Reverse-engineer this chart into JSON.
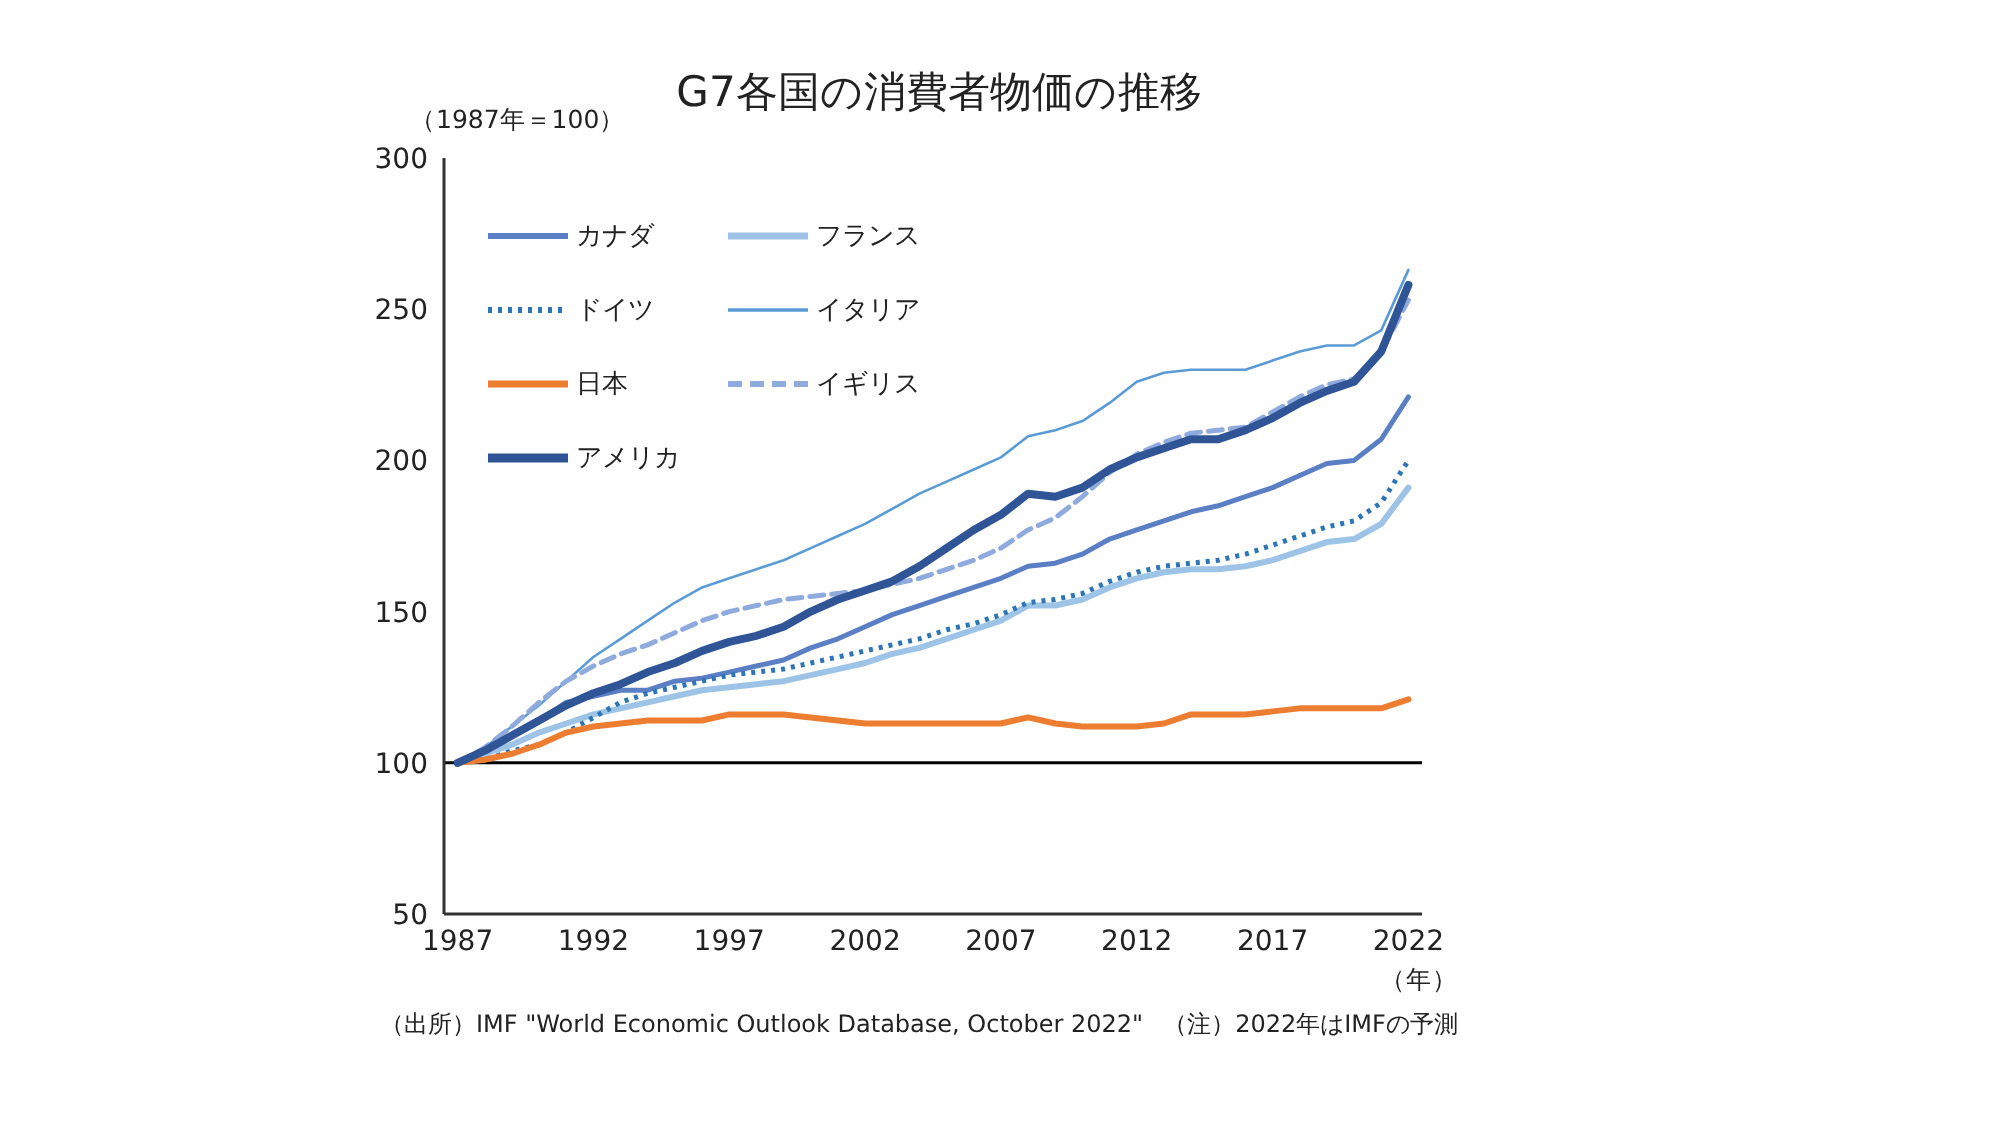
{
  "chart_data": {
    "type": "line",
    "title": "G7各国の消費者物価の推移",
    "xlabel": "（年）",
    "annotations": [
      "（1987年＝100）",
      "（出所）IMF \"World Economic Outlook Database, October 2022\"",
      "（注）2022年はIMFの予測"
    ],
    "x": [
      1987,
      1988,
      1989,
      1990,
      1991,
      1992,
      1993,
      1994,
      1995,
      1996,
      1997,
      1998,
      1999,
      2000,
      2001,
      2002,
      2003,
      2004,
      2005,
      2006,
      2007,
      2008,
      2009,
      2010,
      2011,
      2012,
      2013,
      2014,
      2015,
      2016,
      2017,
      2018,
      2019,
      2020,
      2021,
      2022
    ],
    "series": [
      {
        "name": "カナダ",
        "color": "#5b7fc4",
        "line_style": "solid",
        "values": [
          100,
          104,
          109,
          114,
          120,
          122,
          124,
          124,
          127,
          128,
          130,
          132,
          134,
          138,
          141,
          145,
          149,
          152,
          155,
          158,
          161,
          165,
          166,
          169,
          174,
          177,
          180,
          183,
          185,
          188,
          191,
          195,
          199,
          200,
          207,
          221
        ]
      },
      {
        "name": "フランス",
        "color": "#9dc3e6",
        "line_style": "solid",
        "values": [
          100,
          103,
          106,
          110,
          113,
          116,
          118,
          120,
          122,
          124,
          125,
          126,
          127,
          129,
          131,
          133,
          136,
          138,
          141,
          144,
          147,
          152,
          152,
          154,
          158,
          161,
          163,
          164,
          164,
          165,
          167,
          170,
          173,
          174,
          179,
          191
        ]
      },
      {
        "name": "ドイツ",
        "color": "#2e75b6",
        "line_style": "dotted",
        "values": [
          100,
          101,
          104,
          106,
          110,
          115,
          120,
          123,
          125,
          127,
          129,
          130,
          131,
          133,
          135,
          137,
          139,
          141,
          144,
          146,
          149,
          153,
          154,
          156,
          160,
          163,
          165,
          166,
          167,
          169,
          172,
          175,
          178,
          180,
          186,
          200
        ]
      },
      {
        "name": "イタリア",
        "color": "#5b9bd5",
        "line_style": "solid",
        "values": [
          100,
          105,
          112,
          119,
          127,
          135,
          141,
          147,
          153,
          158,
          161,
          164,
          167,
          171,
          175,
          179,
          184,
          189,
          193,
          197,
          201,
          208,
          210,
          213,
          219,
          226,
          229,
          230,
          230,
          230,
          233,
          236,
          238,
          238,
          243,
          263
        ]
      },
      {
        "name": "日本",
        "color": "#ed7d31",
        "line_style": "solid",
        "values": [
          100,
          101,
          103,
          106,
          110,
          112,
          113,
          114,
          114,
          114,
          116,
          116,
          116,
          115,
          114,
          113,
          113,
          113,
          113,
          113,
          113,
          115,
          113,
          112,
          112,
          112,
          113,
          116,
          116,
          116,
          117,
          118,
          118,
          118,
          118,
          121
        ]
      },
      {
        "name": "イギリス",
        "color": "#8faadc",
        "line_style": "dashed",
        "values": [
          100,
          105,
          112,
          120,
          127,
          132,
          136,
          139,
          143,
          147,
          150,
          152,
          154,
          155,
          156,
          157,
          159,
          161,
          164,
          167,
          171,
          177,
          181,
          188,
          196,
          202,
          206,
          209,
          210,
          211,
          216,
          221,
          225,
          227,
          236,
          253
        ]
      },
      {
        "name": "アメリカ",
        "color": "#2f5597",
        "line_style": "solid",
        "values": [
          100,
          104,
          109,
          114,
          119,
          123,
          126,
          130,
          133,
          137,
          140,
          142,
          145,
          150,
          154,
          157,
          160,
          165,
          171,
          177,
          182,
          189,
          188,
          191,
          197,
          201,
          204,
          207,
          207,
          210,
          214,
          219,
          223,
          226,
          236,
          258
        ]
      }
    ],
    "xlim": [
      1986.5,
      2022.5
    ],
    "xticks": [
      1987,
      1992,
      1997,
      2002,
      2007,
      2012,
      2017,
      2022
    ],
    "ylim": [
      50,
      300
    ],
    "yticks": [
      50,
      100,
      150,
      200,
      250,
      300
    ],
    "ref_lines": [
      {
        "axis": "y",
        "value": 100,
        "color": "#000000"
      }
    ],
    "legend": "top left",
    "grid": false
  }
}
